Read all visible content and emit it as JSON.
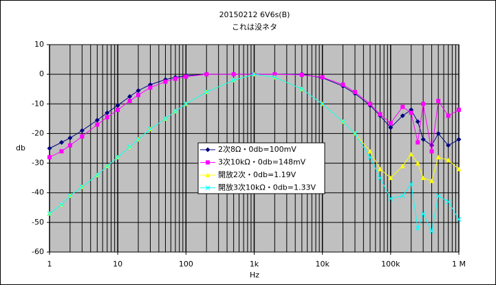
{
  "chart_data": {
    "type": "line",
    "title": "20150212 6V6s(B)",
    "subtitle": "これは没ネタ",
    "x_label": "Hz",
    "y_label": "db",
    "x_log": true,
    "grid": true,
    "background": "#c0c0c0",
    "x": [
      1,
      1.5,
      2,
      3,
      5,
      7,
      10,
      15,
      20,
      30,
      50,
      70,
      100,
      200,
      500,
      1000,
      2000,
      5000,
      10000,
      20000,
      30000,
      50000,
      70000,
      100000,
      150000,
      200000,
      250000,
      300000,
      400000,
      500000,
      700000,
      1000000
    ],
    "xlim": [
      1,
      1000000
    ],
    "xticks": [
      1,
      10,
      100,
      {
        "value": 1000,
        "label": "1k"
      },
      {
        "value": 10000,
        "label": "10k"
      },
      {
        "value": 100000,
        "label": "100k"
      },
      {
        "value": 1000000,
        "label": "1 M"
      }
    ],
    "ylim": [
      -60,
      10
    ],
    "yticks": [
      10,
      0,
      -10,
      -20,
      -30,
      -40,
      -50,
      -60
    ],
    "series": [
      {
        "name": "2次8Ω・0db=100mV",
        "color": "#000080",
        "marker": "diamond",
        "values": [
          -25,
          -23,
          -21.5,
          -19,
          -15.5,
          -13,
          -10.5,
          -7.5,
          -5.5,
          -3.5,
          -1.8,
          -1,
          -0.5,
          0,
          0,
          0,
          0,
          0,
          -1.2,
          -4,
          -6.5,
          -10.5,
          -14,
          -18,
          -14,
          -12,
          -16,
          -22,
          -24,
          -20,
          -24,
          -22
        ]
      },
      {
        "name": "3次10kΩ・0db=148mV",
        "color": "#ff00ff",
        "marker": "square",
        "values": [
          -28,
          -26,
          -24,
          -21,
          -17,
          -14.5,
          -12,
          -9,
          -7,
          -4.5,
          -2.5,
          -1.5,
          -0.8,
          0,
          0,
          0,
          0,
          -0.2,
          -1,
          -3.5,
          -6,
          -10,
          -13.5,
          -16.5,
          -11,
          -13,
          -23,
          -10,
          -26,
          -9,
          -14,
          -12
        ]
      },
      {
        "name": "開放2次・0db=1.19V",
        "color": "#ffff00",
        "marker": "triangle",
        "values": [
          -47,
          -44,
          -41,
          -38,
          -34,
          -31,
          -28,
          -24.5,
          -22,
          -18.5,
          -15,
          -12.5,
          -10,
          -6,
          -2,
          0,
          -1,
          -5,
          -10,
          -16,
          -20,
          -26,
          -32,
          -35,
          -31,
          -27,
          -30,
          -35,
          -36,
          -28,
          -29,
          -32
        ]
      },
      {
        "name": "開放3次10kΩ・0db=1.33V",
        "color": "#00ffff",
        "marker": "x",
        "values": [
          -47,
          -44,
          -41,
          -38,
          -34,
          -31,
          -28,
          -24.5,
          -22,
          -18.5,
          -15,
          -12.5,
          -10,
          -6,
          -2,
          0,
          -1,
          -5,
          -10,
          -16,
          -20,
          -28,
          -35,
          -42,
          -41,
          -37,
          -52,
          -47,
          -53,
          -41,
          -43,
          -49
        ]
      }
    ]
  }
}
